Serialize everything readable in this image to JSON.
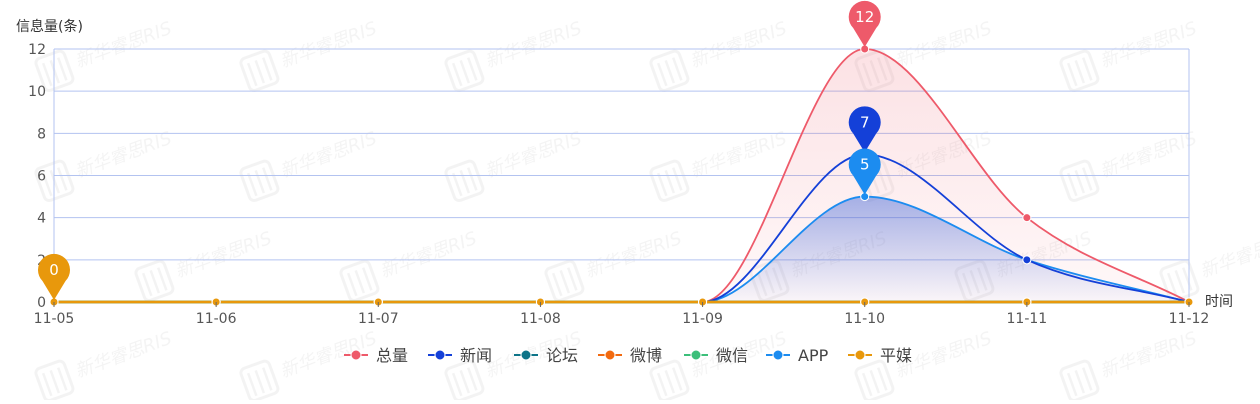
{
  "chart_data": {
    "type": "line",
    "ylabel": "信息量(条)",
    "xlabel": "时间",
    "ylim": [
      0,
      12
    ],
    "yticks": [
      0,
      2,
      4,
      6,
      8,
      10,
      12
    ],
    "categories": [
      "11-05",
      "11-06",
      "11-07",
      "11-08",
      "11-09",
      "11-10",
      "11-11",
      "11-12"
    ],
    "grid": true,
    "legend_position": "bottom-center",
    "watermark": "新华睿思RIS",
    "series": [
      {
        "name": "总量",
        "color": "#ee5a6a",
        "values": [
          0,
          0,
          0,
          0,
          0,
          12,
          4,
          0
        ],
        "area": true,
        "max_label": 12
      },
      {
        "name": "新闻",
        "color": "#1440d8",
        "values": [
          0,
          0,
          0,
          0,
          0,
          7,
          2,
          0
        ],
        "area": false,
        "max_label": 7
      },
      {
        "name": "论坛",
        "color": "#0d7488",
        "values": [
          0,
          0,
          0,
          0,
          0,
          0,
          0,
          0
        ],
        "area": false
      },
      {
        "name": "微博",
        "color": "#f26a10",
        "values": [
          0,
          0,
          0,
          0,
          0,
          0,
          0,
          0
        ],
        "area": false
      },
      {
        "name": "微信",
        "color": "#3cbf7a",
        "values": [
          0,
          0,
          0,
          0,
          0,
          0,
          0,
          0
        ],
        "area": false
      },
      {
        "name": "APP",
        "color": "#1c8cf0",
        "values": [
          0,
          0,
          0,
          0,
          0,
          5,
          2,
          0
        ],
        "area": true,
        "max_label": 5
      },
      {
        "name": "平媒",
        "color": "#e8980c",
        "values": [
          0,
          0,
          0,
          0,
          0,
          0,
          0,
          0
        ],
        "area": false,
        "max_label": 0
      }
    ]
  }
}
